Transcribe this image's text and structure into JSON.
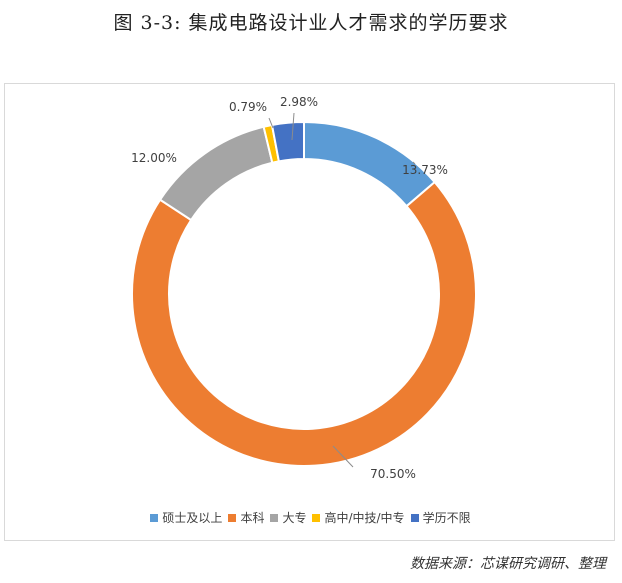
{
  "title": "图 3-3: 集成电路设计业人才需求的学历要求",
  "source": "数据来源：芯谋研究调研、整理",
  "chart_data": {
    "type": "pie",
    "subtype": "donut",
    "title": "",
    "categories": [
      "硕士及以上",
      "本科",
      "大专",
      "高中/中技/中专",
      "学历不限"
    ],
    "values": [
      13.73,
      70.5,
      12.0,
      0.79,
      2.98
    ],
    "labels": [
      "13.73%",
      "70.50%",
      "12.00%",
      "0.79%",
      "2.98%"
    ],
    "colors": [
      "#5B9BD5",
      "#ED7D31",
      "#A5A5A5",
      "#FFC000",
      "#4472C4"
    ],
    "legend_position": "bottom",
    "unit": "%"
  }
}
